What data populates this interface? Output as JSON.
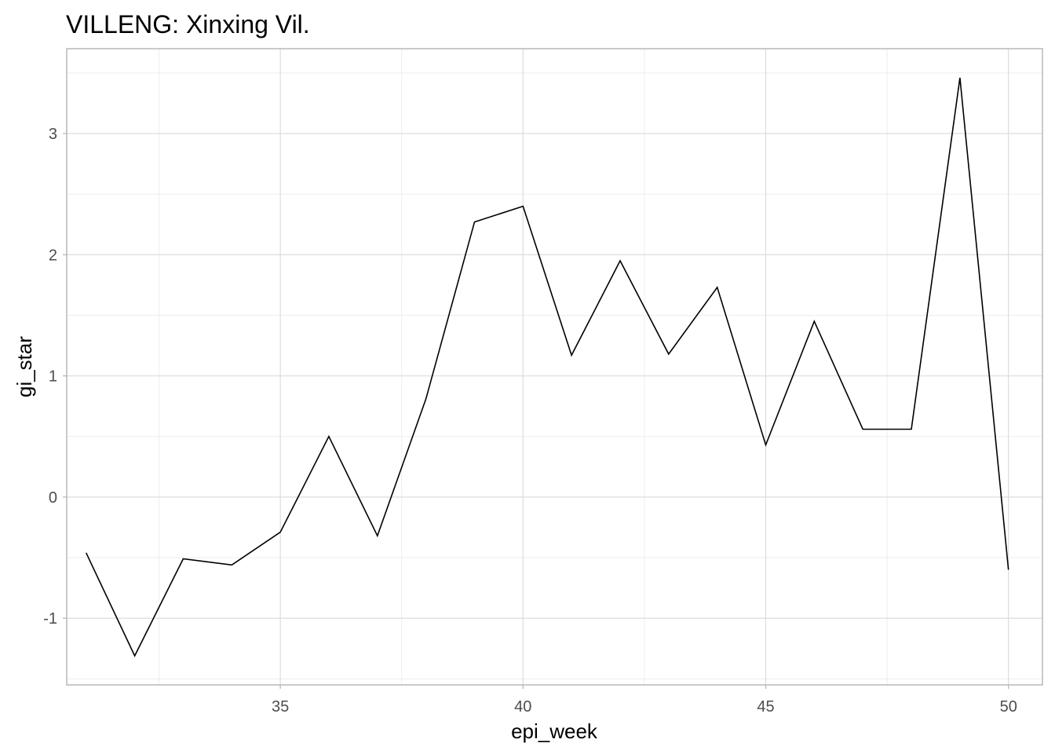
{
  "chart_data": {
    "type": "line",
    "title": "VILLENG: Xinxing Vil.",
    "xlabel": "epi_week",
    "ylabel": "gi_star",
    "xlim": [
      30.6,
      50.7
    ],
    "ylim": [
      -1.55,
      3.7
    ],
    "x_ticks": [
      35,
      40,
      45,
      50
    ],
    "y_ticks": [
      -1,
      0,
      1,
      2,
      3
    ],
    "x_tick_labels": [
      "35",
      "40",
      "45",
      "50"
    ],
    "y_tick_labels": [
      "-1",
      "0",
      "1",
      "2",
      "3"
    ],
    "grid": true,
    "legend": "none",
    "series": [
      {
        "x": [
          31,
          32,
          33,
          34,
          35,
          36,
          37,
          38,
          39,
          40,
          41,
          42,
          43,
          44,
          45,
          46,
          47,
          48,
          49,
          50
        ],
        "y": [
          -0.46,
          -1.31,
          -0.51,
          -0.56,
          -0.29,
          0.5,
          -0.32,
          0.81,
          2.27,
          2.4,
          1.17,
          1.95,
          1.18,
          1.73,
          0.43,
          1.45,
          0.56,
          0.56,
          3.46,
          -0.6
        ],
        "color": "#000000"
      }
    ]
  }
}
